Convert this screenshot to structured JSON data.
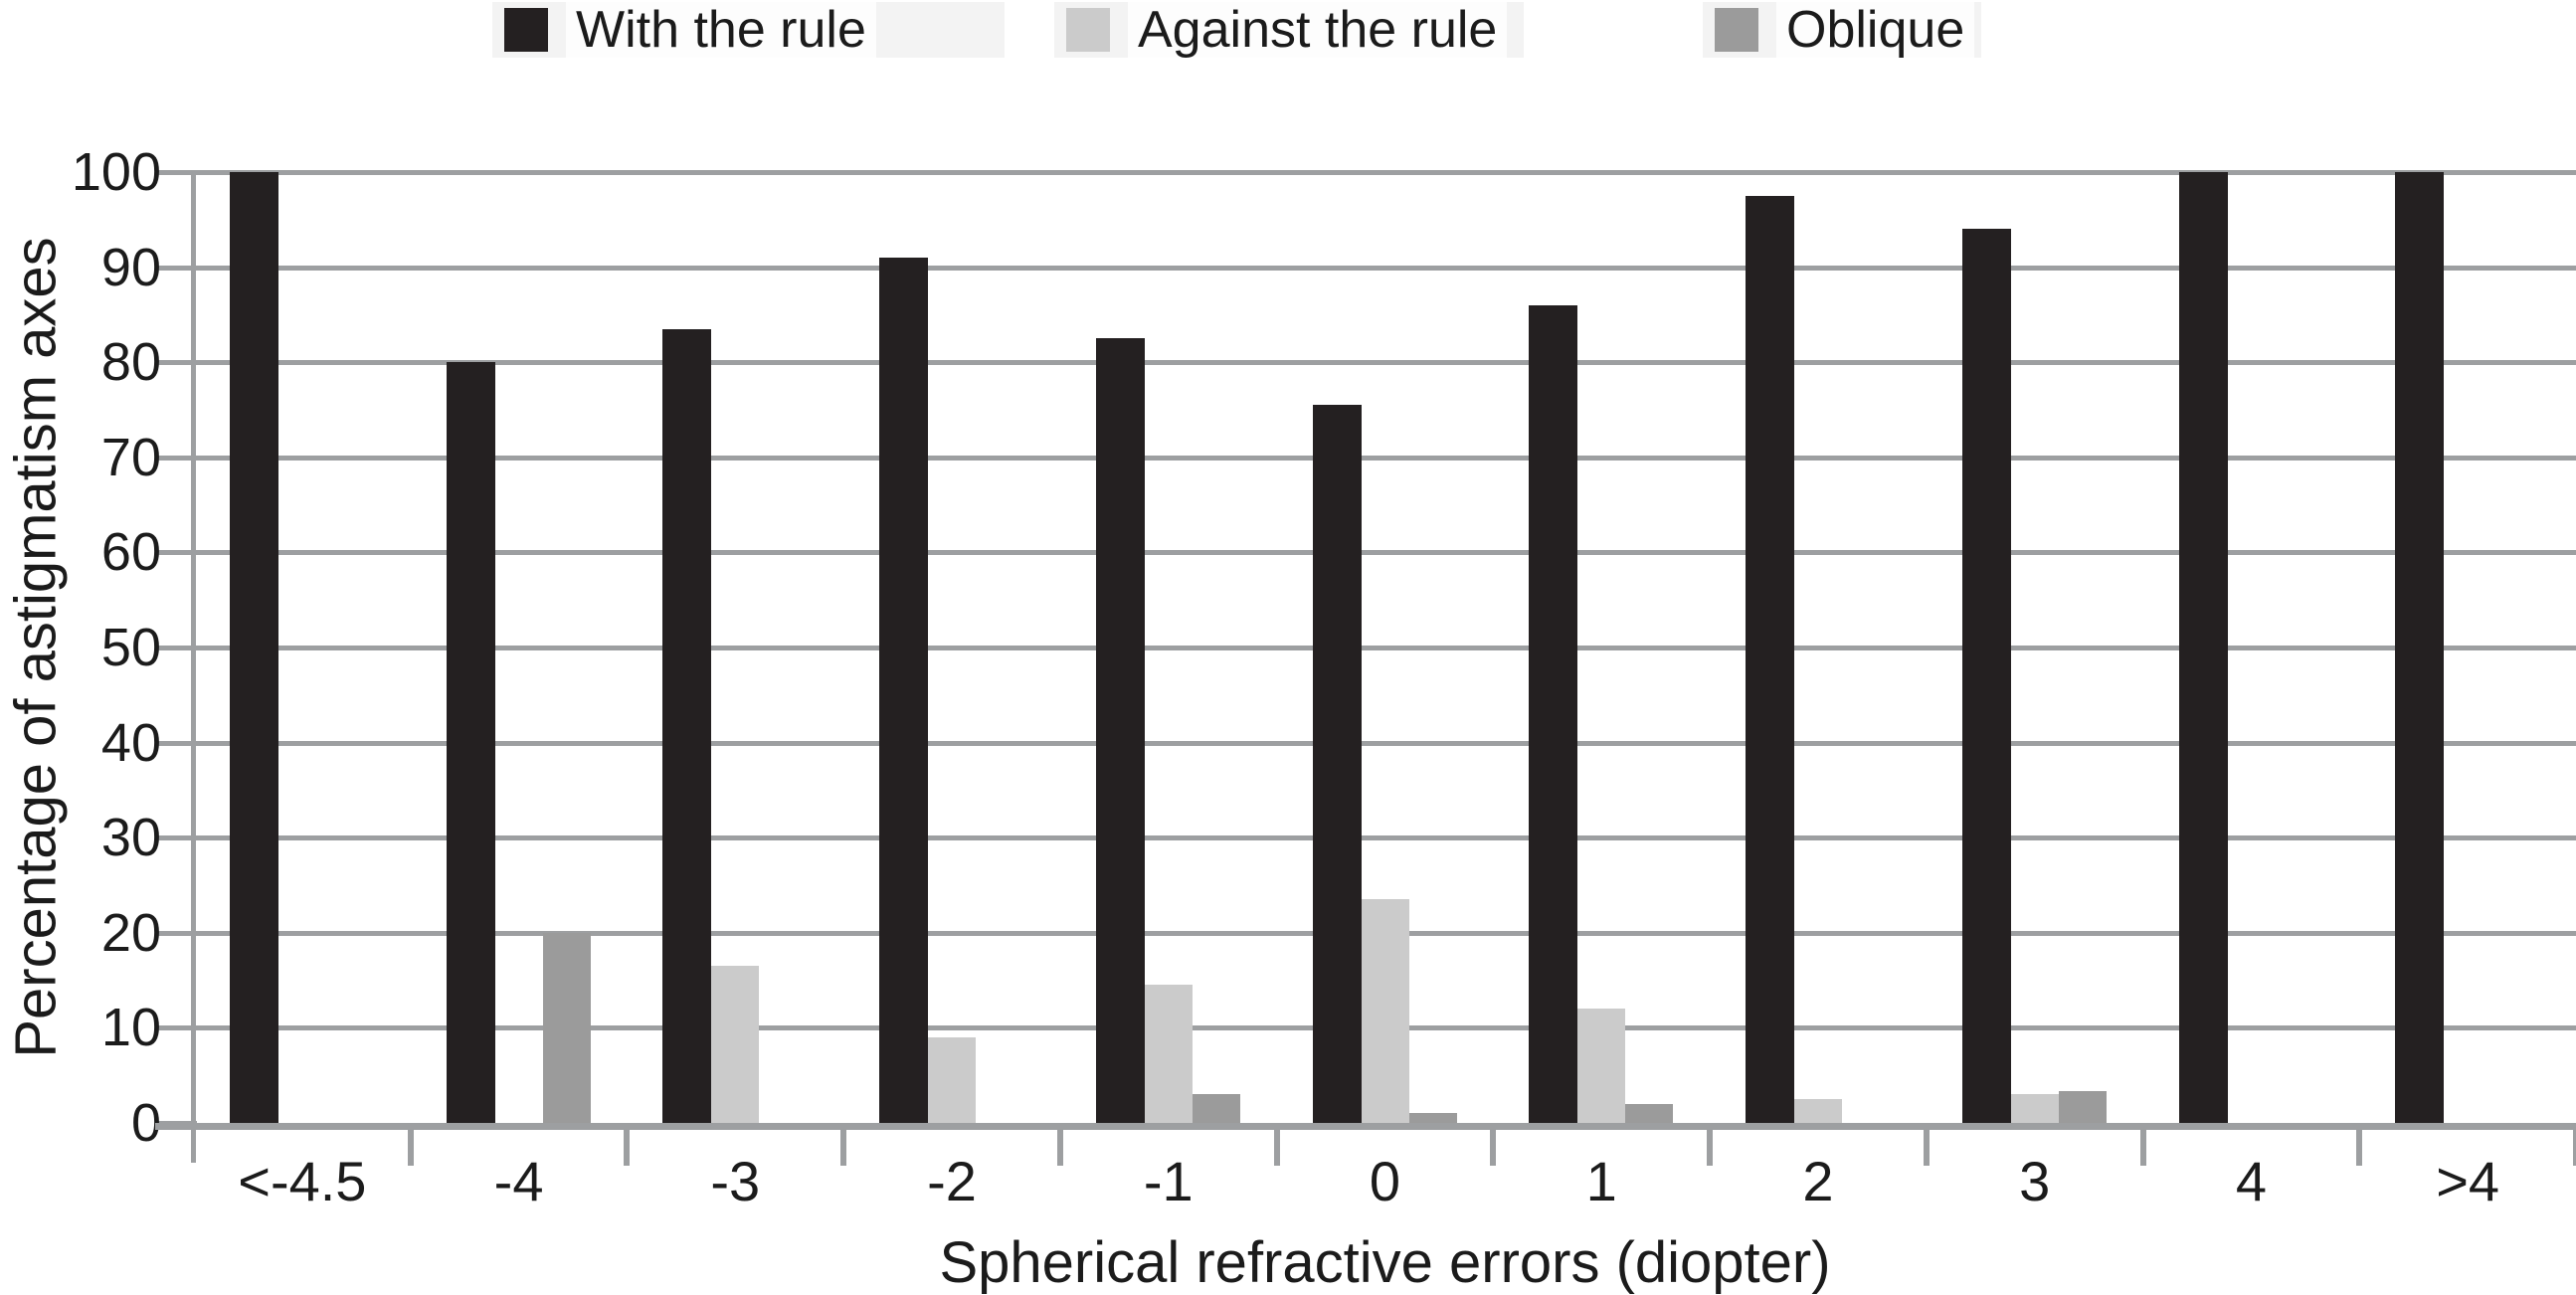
{
  "chart_data": {
    "type": "bar",
    "title": "",
    "categories": [
      "<-4.5",
      "-4",
      "-3",
      "-2",
      "-1",
      "0",
      "1",
      "2",
      "3",
      "4",
      ">4"
    ],
    "series": [
      {
        "name": "With the rule",
        "color": "#242021",
        "values": [
          100,
          80,
          83.5,
          91,
          82.5,
          75.5,
          86,
          97.5,
          94,
          100,
          100
        ]
      },
      {
        "name": "Against the rule",
        "color": "#cbcbcb",
        "values": [
          0,
          0,
          16.5,
          9,
          14.5,
          23.5,
          12,
          2.5,
          3,
          0,
          0
        ]
      },
      {
        "name": "Oblique",
        "color": "#9b9b9b",
        "values": [
          0,
          20,
          0,
          0,
          3,
          1,
          2,
          0,
          3.3,
          0,
          0
        ]
      }
    ],
    "xlabel": "Spherical refractive errors (diopter)",
    "ylabel": "Percentage of astigmatism axes",
    "ylim": [
      0,
      100
    ],
    "ytick_step": 10,
    "yticks": [
      "0",
      "10",
      "20",
      "30",
      "40",
      "50",
      "60",
      "70",
      "80",
      "90",
      "100"
    ],
    "grid": true,
    "gridline_color": "#9d9fa1",
    "legend_position": "top"
  }
}
